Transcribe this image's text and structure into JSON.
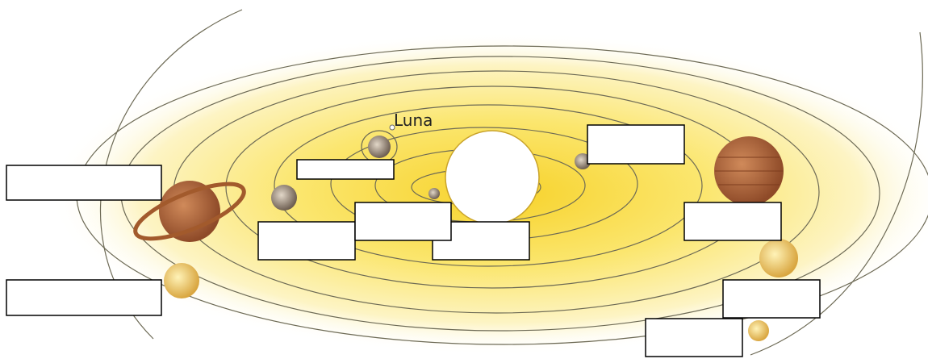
{
  "labels": {
    "moon": "Luna"
  }
}
